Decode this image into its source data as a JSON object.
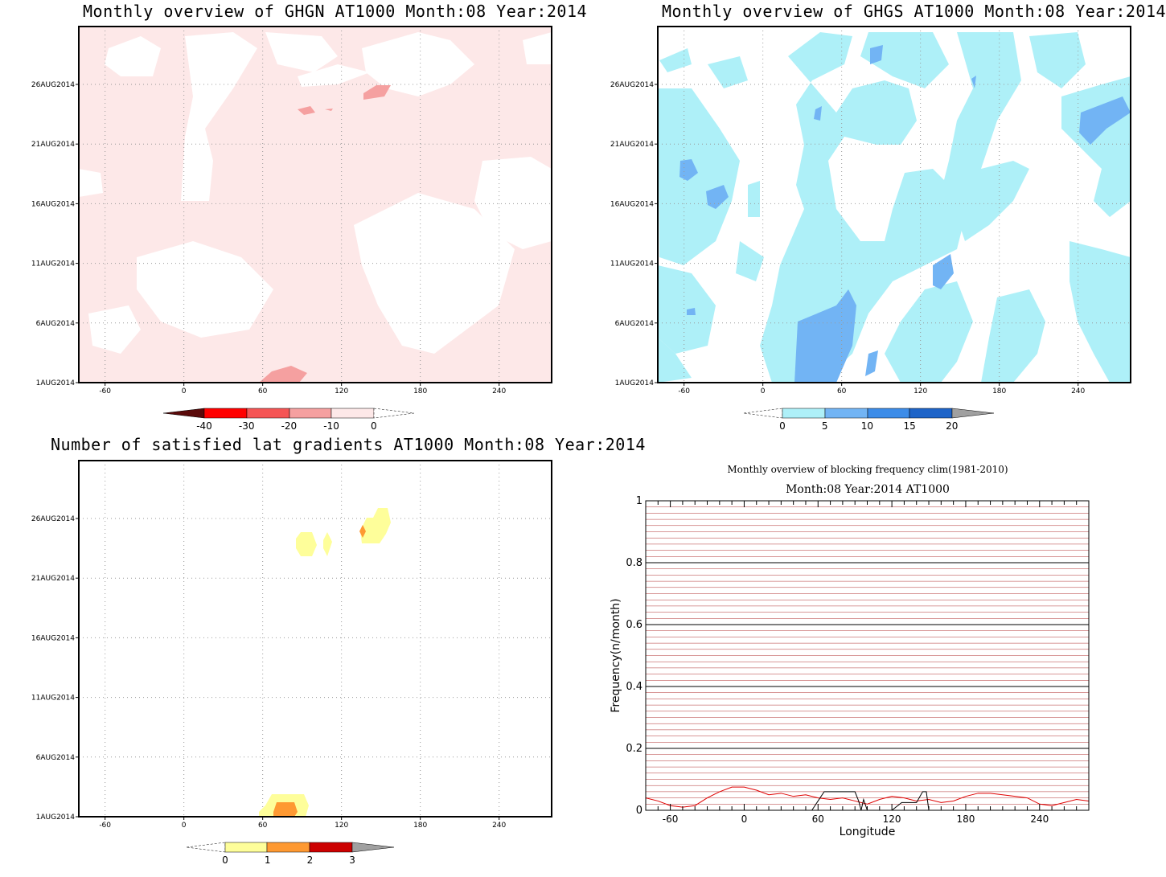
{
  "panels": {
    "ghgn": {
      "title": "Monthly overview of GHGN AT1000 Month:08 Year:2014"
    },
    "ghgs": {
      "title": "Monthly overview of GHGS AT1000 Month:08 Year:2014"
    },
    "grad": {
      "title": "Number of satisfied lat gradients AT1000 Month:08 Year:2014"
    },
    "freq": {
      "title": "Monthly overview of blocking frequency clim(1981-2010)",
      "subtitle": "Month:08 Year:2014  AT1000"
    }
  },
  "chart_data": [
    {
      "type": "heatmap",
      "title": "Monthly overview of GHGN AT1000 Month:08 Year:2014",
      "x_ticks": [
        -60,
        0,
        60,
        120,
        180,
        240
      ],
      "y_ticks": [
        "1AUG2014",
        "6AUG2014",
        "11AUG2014",
        "16AUG2014",
        "21AUG2014",
        "26AUG2014"
      ],
      "xlim": [
        -80,
        280
      ],
      "colorbar": {
        "ticks": [
          "-40",
          "-30",
          "-20",
          "-10",
          "0"
        ],
        "colors": [
          "#5a0a0a",
          "#ff0000",
          "#f55555",
          "#f5a0a0",
          "#fde8e8"
        ]
      },
      "fill_color": "#fde8e8",
      "highlights": [
        {
          "lon": 125,
          "date": "26AUG2014",
          "level": "-10 to -20"
        },
        {
          "lon": 80,
          "date": "1AUG2014",
          "level": "-10 to -20"
        }
      ]
    },
    {
      "type": "heatmap",
      "title": "Monthly overview of GHGS AT1000 Month:08 Year:2014",
      "x_ticks": [
        -60,
        0,
        60,
        120,
        180,
        240
      ],
      "y_ticks": [
        "1AUG2014",
        "6AUG2014",
        "11AUG2014",
        "16AUG2014",
        "21AUG2014",
        "26AUG2014"
      ],
      "xlim": [
        -80,
        280
      ],
      "colorbar": {
        "ticks": [
          "0",
          "5",
          "10",
          "15",
          "20"
        ],
        "colors": [
          "#aef0f8",
          "#72b4f4",
          "#3c8ce8",
          "#1e64c8",
          "#a0a0a0"
        ]
      },
      "fill_color": "#aef0f8"
    },
    {
      "type": "heatmap",
      "title": "Number of satisfied lat gradients AT1000 Month:08 Year:2014",
      "x_ticks": [
        -60,
        0,
        60,
        120,
        180,
        240
      ],
      "y_ticks": [
        "1AUG2014",
        "6AUG2014",
        "11AUG2014",
        "16AUG2014",
        "21AUG2014",
        "26AUG2014"
      ],
      "xlim": [
        -80,
        280
      ],
      "colorbar": {
        "ticks": [
          "0",
          "1",
          "2",
          "3"
        ],
        "colors": [
          "#fefe9a",
          "#fe9932",
          "#cc0000",
          "#a0a0a0"
        ]
      }
    },
    {
      "type": "line",
      "title": "Monthly overview of blocking frequency clim(1981-2010)",
      "subtitle": "Month:08 Year:2014  AT1000",
      "xlabel": "Longitude",
      "ylabel": "Frequency(n/month)",
      "xlim": [
        -80,
        280
      ],
      "ylim": [
        0,
        1
      ],
      "x_ticks": [
        -60,
        0,
        60,
        120,
        180,
        240
      ],
      "y_ticks": [
        "0",
        "0.2",
        "0.4",
        "0.6",
        "0.8",
        "1"
      ],
      "grid": true,
      "series": [
        {
          "color": "#e00000",
          "x": [
            -80,
            -70,
            -60,
            -50,
            -40,
            -30,
            -20,
            -10,
            0,
            10,
            20,
            30,
            40,
            50,
            60,
            70,
            80,
            90,
            100,
            110,
            120,
            130,
            140,
            150,
            160,
            170,
            180,
            190,
            200,
            210,
            220,
            230,
            240,
            250,
            260,
            270,
            280
          ],
          "values": [
            0.04,
            0.03,
            0.015,
            0.01,
            0.015,
            0.04,
            0.06,
            0.075,
            0.075,
            0.065,
            0.05,
            0.055,
            0.045,
            0.05,
            0.04,
            0.035,
            0.04,
            0.03,
            0.02,
            0.035,
            0.045,
            0.04,
            0.03,
            0.035,
            0.025,
            0.03,
            0.045,
            0.055,
            0.055,
            0.05,
            0.045,
            0.04,
            0.02,
            0.015,
            0.025,
            0.035,
            0.03
          ]
        },
        {
          "color": "#000000",
          "x": [
            -80,
            55,
            60,
            65,
            70,
            90,
            93,
            95,
            97,
            100,
            102,
            105,
            110,
            115,
            120,
            128,
            133,
            140,
            145,
            148,
            150,
            160,
            280
          ],
          "values": [
            0,
            0,
            0.03,
            0.06,
            0.06,
            0.06,
            0.03,
            0.0,
            0.035,
            0.0,
            0.0,
            0.0,
            0.0,
            0.0,
            0.0,
            0.025,
            0.025,
            0.025,
            0.06,
            0.06,
            0.0,
            0.0,
            0
          ]
        }
      ]
    }
  ]
}
